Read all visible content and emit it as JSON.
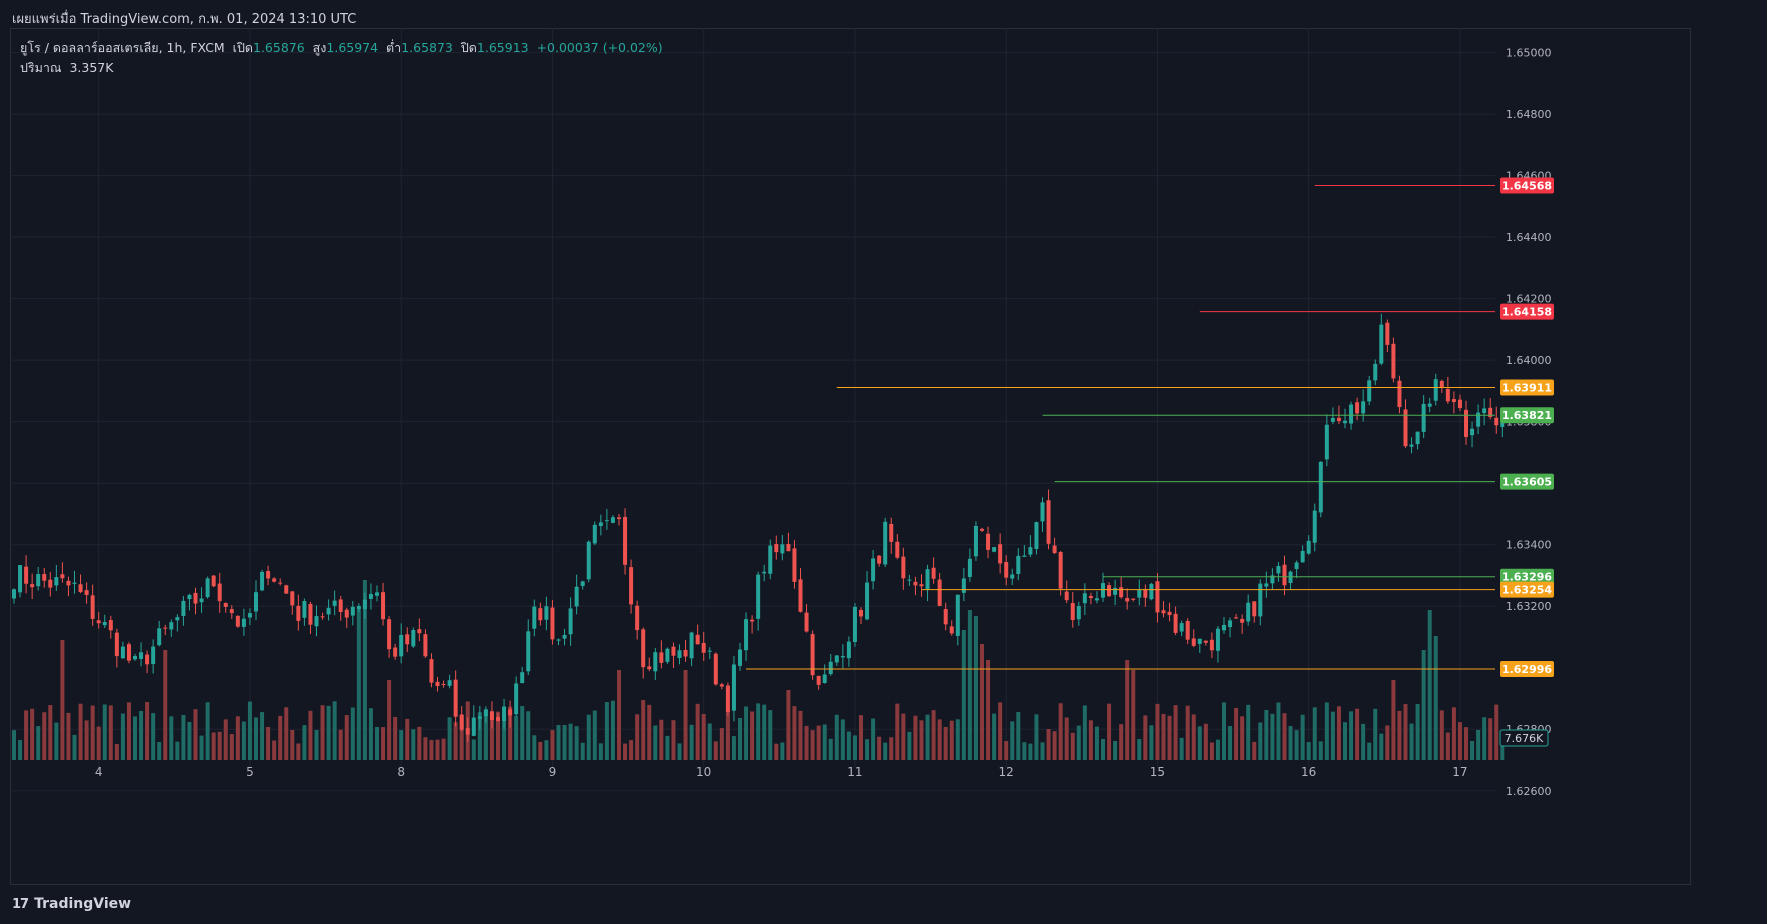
{
  "header": {
    "published": "เผยแพร่เมื่อ TradingView.com, ก.พ. 01, 2024 13:10 UTC"
  },
  "legend": {
    "symbol": "ยูโร / ดอลลาร์ออสเตรเลีย, 1h, FXCM",
    "open_label": "เปิด",
    "open": "1.65876",
    "high_label": "สูง",
    "high": "1.65974",
    "low_label": "ต่ำ",
    "low": "1.65873",
    "close_label": "ปิด",
    "close": "1.65913",
    "change": "+0.00037 (+0.02%)",
    "volume_label": "ปริมาณ",
    "volume": "3.357K"
  },
  "footer": {
    "brand": "TradingView"
  },
  "colors": {
    "background": "#131722",
    "up": "#26a69a",
    "down": "#ef5350",
    "vol_up": "#1f6b66",
    "vol_down": "#8a3a3d",
    "grid": "#1f2430",
    "orange": "#f7a21b",
    "green": "#4caf50",
    "red": "#f23645"
  },
  "chart_data": {
    "type": "candlestick",
    "symbol": "EURAUD",
    "timeframe": "1h",
    "ylim": [
      1.627,
      1.6508
    ],
    "y_ticks": [
      "1.65000",
      "1.64800",
      "1.64600",
      "1.64400",
      "1.64200",
      "1.64000",
      "1.63800",
      "1.63600",
      "1.63400",
      "1.63200",
      "1.62800",
      "1.62600"
    ],
    "x_ticks": [
      {
        "label": "4",
        "index": 14
      },
      {
        "label": "5",
        "index": 39
      },
      {
        "label": "8",
        "index": 64
      },
      {
        "label": "9",
        "index": 89
      },
      {
        "label": "10",
        "index": 114
      },
      {
        "label": "11",
        "index": 139
      },
      {
        "label": "12",
        "index": 164
      },
      {
        "label": "15",
        "index": 189
      },
      {
        "label": "16",
        "index": 214
      },
      {
        "label": "17",
        "index": 239
      }
    ],
    "candle_count": 247,
    "anchors": [
      [
        0,
        1.633
      ],
      [
        10,
        1.6326
      ],
      [
        20,
        1.63
      ],
      [
        28,
        1.6318
      ],
      [
        33,
        1.6328
      ],
      [
        38,
        1.6312
      ],
      [
        42,
        1.6333
      ],
      [
        47,
        1.6318
      ],
      [
        54,
        1.6318
      ],
      [
        60,
        1.6326
      ],
      [
        62,
        1.6305
      ],
      [
        67,
        1.631
      ],
      [
        69,
        1.6295
      ],
      [
        72,
        1.6292
      ],
      [
        74,
        1.6278
      ],
      [
        78,
        1.6288
      ],
      [
        80,
        1.628
      ],
      [
        83,
        1.6292
      ],
      [
        86,
        1.6323
      ],
      [
        90,
        1.6308
      ],
      [
        96,
        1.6343
      ],
      [
        100,
        1.6346
      ],
      [
        104,
        1.6304
      ],
      [
        110,
        1.6304
      ],
      [
        113,
        1.631
      ],
      [
        118,
        1.629
      ],
      [
        124,
        1.6334
      ],
      [
        128,
        1.634
      ],
      [
        133,
        1.6292
      ],
      [
        140,
        1.632
      ],
      [
        144,
        1.6344
      ],
      [
        147,
        1.6325
      ],
      [
        151,
        1.633
      ],
      [
        155,
        1.6312
      ],
      [
        159,
        1.6345
      ],
      [
        164,
        1.6332
      ],
      [
        167,
        1.6332
      ],
      [
        170,
        1.635
      ],
      [
        175,
        1.6315
      ],
      [
        180,
        1.6328
      ],
      [
        184,
        1.6321
      ],
      [
        188,
        1.6325
      ],
      [
        192,
        1.6314
      ],
      [
        196,
        1.6308
      ],
      [
        200,
        1.6311
      ],
      [
        203,
        1.6313
      ],
      [
        206,
        1.6325
      ],
      [
        210,
        1.6331
      ],
      [
        214,
        1.6345
      ],
      [
        216,
        1.6366
      ],
      [
        218,
        1.6384
      ],
      [
        220,
        1.6383
      ],
      [
        222,
        1.6385
      ],
      [
        224,
        1.6389
      ],
      [
        226,
        1.641
      ],
      [
        228,
        1.6395
      ],
      [
        230,
        1.6376
      ],
      [
        232,
        1.6374
      ],
      [
        234,
        1.6389
      ],
      [
        236,
        1.6391
      ],
      [
        238,
        1.6389
      ],
      [
        240,
        1.6378
      ],
      [
        242,
        1.6385
      ],
      [
        245,
        1.6379
      ],
      [
        247,
        1.6374
      ],
      [
        249,
        1.6385
      ]
    ],
    "volume_spikes": [
      [
        8,
        0.6
      ],
      [
        25,
        0.55
      ],
      [
        57,
        0.75
      ],
      [
        58,
        0.9
      ],
      [
        62,
        0.4
      ],
      [
        100,
        0.45
      ],
      [
        111,
        0.45
      ],
      [
        128,
        0.35
      ],
      [
        157,
        0.65
      ],
      [
        158,
        0.75
      ],
      [
        159,
        0.72
      ],
      [
        160,
        0.58
      ],
      [
        161,
        0.5
      ],
      [
        184,
        0.5
      ],
      [
        185,
        0.45
      ],
      [
        228,
        0.4
      ],
      [
        233,
        0.55
      ],
      [
        234,
        0.75
      ],
      [
        235,
        0.62
      ]
    ],
    "levels": [
      {
        "price": 1.64568,
        "label": "1.64568",
        "color": "#f23645",
        "x_start": 215
      },
      {
        "price": 1.64158,
        "label": "1.64158",
        "color": "#f23645",
        "x_start": 196
      },
      {
        "price": 1.63911,
        "label": "1.63911",
        "color": "#f7a21b",
        "x_start": 136
      },
      {
        "price": 1.63821,
        "label": "1.63821",
        "color": "#4caf50",
        "x_start": 170
      },
      {
        "price": 1.63605,
        "label": "1.63605",
        "color": "#4caf50",
        "x_start": 172
      },
      {
        "price": 1.63296,
        "label": "1.63296",
        "color": "#4caf50",
        "x_start": 180
      },
      {
        "price": 1.63254,
        "label": "1.63254",
        "color": "#f7a21b",
        "x_start": 150
      },
      {
        "price": 1.62996,
        "label": "1.62996",
        "color": "#f7a21b",
        "x_start": 121
      }
    ],
    "last_volume_label": "7.676K"
  }
}
